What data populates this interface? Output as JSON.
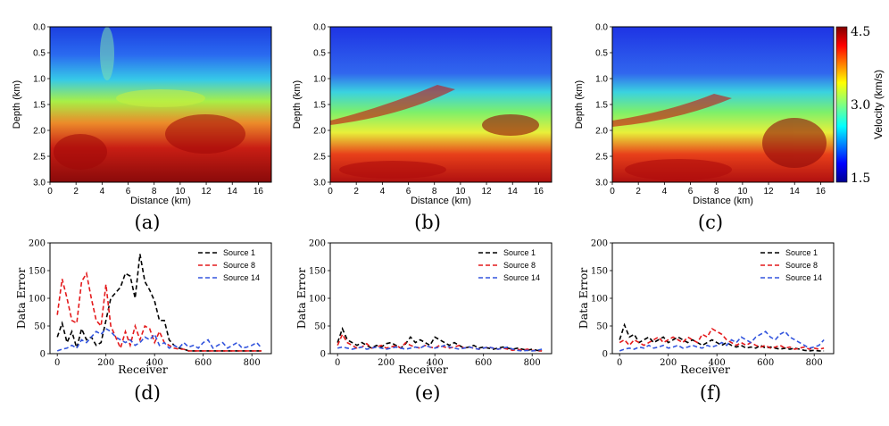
{
  "chart_data": [
    {
      "panel": "(a)",
      "type": "heatmap",
      "title": "",
      "xlabel": "Distance (km)",
      "ylabel": "Depth (km)",
      "xlim": [
        0,
        17
      ],
      "ylim": [
        3.0,
        0.0
      ],
      "x_ticks": [
        "0",
        "2",
        "4",
        "6",
        "8",
        "10",
        "12",
        "14",
        "16"
      ],
      "y_ticks": [
        "0.0",
        "0.5",
        "1.0",
        "1.5",
        "2.0",
        "2.5",
        "3.0"
      ],
      "description": "noisy velocity model"
    },
    {
      "panel": "(b)",
      "type": "heatmap",
      "title": "",
      "xlabel": "Distance (km)",
      "ylabel": "Depth (km)",
      "xlim": [
        0,
        17
      ],
      "ylim": [
        3.0,
        0.0
      ],
      "x_ticks": [
        "0",
        "2",
        "4",
        "6",
        "8",
        "10",
        "12",
        "14",
        "16"
      ],
      "y_ticks": [
        "0.0",
        "0.5",
        "1.0",
        "1.5",
        "2.0",
        "2.5",
        "3.0"
      ],
      "description": "layered velocity model"
    },
    {
      "panel": "(c)",
      "type": "heatmap",
      "title": "",
      "xlabel": "Distance (km)",
      "ylabel": "Depth (km)",
      "xlim": [
        0,
        17
      ],
      "ylim": [
        3.0,
        0.0
      ],
      "x_ticks": [
        "0",
        "2",
        "4",
        "6",
        "8",
        "10",
        "12",
        "14",
        "16"
      ],
      "y_ticks": [
        "0.0",
        "0.5",
        "1.0",
        "1.5",
        "2.0",
        "2.5",
        "3.0"
      ],
      "colorbar": {
        "label": "Velocity (km/s)",
        "ticks": [
          "4.5",
          "3.0",
          "1.5"
        ],
        "range": [
          1.5,
          4.5
        ]
      },
      "description": "layered velocity model"
    },
    {
      "panel": "(d)",
      "type": "line",
      "xlabel": "Receiver",
      "ylabel": "Data Error",
      "xlim": [
        -30,
        880
      ],
      "ylim": [
        0,
        200
      ],
      "x_ticks": [
        "0",
        "200",
        "400",
        "600",
        "800"
      ],
      "y_ticks": [
        "0",
        "50",
        "100",
        "150",
        "200"
      ],
      "legend_position": "top-right",
      "series": [
        {
          "name": "Source 1",
          "color": "#000000",
          "x": [
            0,
            20,
            40,
            60,
            80,
            100,
            120,
            140,
            160,
            180,
            200,
            220,
            240,
            260,
            280,
            300,
            320,
            340,
            360,
            380,
            400,
            420,
            440,
            460,
            480,
            500,
            520,
            540,
            560,
            580,
            600,
            620,
            640,
            660,
            680,
            700,
            720,
            740,
            760,
            780,
            800,
            820,
            840
          ],
          "values": [
            30,
            55,
            20,
            40,
            10,
            45,
            25,
            30,
            15,
            20,
            60,
            100,
            110,
            120,
            145,
            140,
            100,
            180,
            130,
            115,
            95,
            60,
            60,
            25,
            15,
            10,
            8,
            5,
            5,
            5,
            5,
            5,
            5,
            5,
            5,
            5,
            5,
            5,
            5,
            5,
            5,
            5,
            5
          ]
        },
        {
          "name": "Source 8",
          "color": "#e41a1c",
          "x": [
            0,
            20,
            40,
            60,
            80,
            100,
            120,
            140,
            160,
            180,
            200,
            220,
            240,
            260,
            280,
            300,
            320,
            340,
            360,
            380,
            400,
            420,
            440,
            460,
            480,
            500,
            520,
            540,
            560,
            580,
            600,
            620,
            640,
            660,
            680,
            700,
            720,
            740,
            760,
            780,
            800,
            820,
            840
          ],
          "values": [
            70,
            135,
            100,
            60,
            55,
            130,
            145,
            100,
            60,
            50,
            125,
            50,
            30,
            10,
            40,
            15,
            50,
            25,
            50,
            45,
            20,
            40,
            20,
            15,
            10,
            8,
            8,
            5,
            5,
            5,
            5,
            5,
            5,
            5,
            5,
            5,
            5,
            5,
            5,
            5,
            5,
            5,
            5
          ]
        },
        {
          "name": "Source 14",
          "color": "#3355dd",
          "x": [
            0,
            20,
            40,
            60,
            80,
            100,
            120,
            140,
            160,
            180,
            200,
            220,
            240,
            260,
            280,
            300,
            320,
            340,
            360,
            380,
            400,
            420,
            440,
            460,
            480,
            500,
            520,
            540,
            560,
            580,
            600,
            620,
            640,
            660,
            680,
            700,
            720,
            740,
            760,
            780,
            800,
            820,
            840
          ],
          "values": [
            5,
            8,
            10,
            15,
            10,
            25,
            20,
            30,
            40,
            35,
            45,
            40,
            30,
            25,
            20,
            25,
            15,
            20,
            30,
            25,
            35,
            15,
            20,
            10,
            15,
            10,
            20,
            12,
            15,
            10,
            20,
            25,
            10,
            15,
            20,
            10,
            15,
            20,
            10,
            12,
            15,
            20,
            10
          ]
        }
      ]
    },
    {
      "panel": "(e)",
      "type": "line",
      "xlabel": "Receiver",
      "ylabel": "Data Error",
      "xlim": [
        -30,
        880
      ],
      "ylim": [
        0,
        200
      ],
      "x_ticks": [
        "0",
        "200",
        "400",
        "600",
        "800"
      ],
      "y_ticks": [
        "0",
        "50",
        "100",
        "150",
        "200"
      ],
      "legend_position": "top-right",
      "series": [
        {
          "name": "Source 1",
          "color": "#000000",
          "x": [
            0,
            20,
            40,
            60,
            80,
            100,
            120,
            140,
            160,
            180,
            200,
            220,
            240,
            260,
            280,
            300,
            320,
            340,
            360,
            380,
            400,
            420,
            440,
            460,
            480,
            500,
            520,
            540,
            560,
            580,
            600,
            620,
            640,
            660,
            680,
            700,
            720,
            740,
            760,
            780,
            800,
            820,
            840
          ],
          "values": [
            20,
            45,
            25,
            20,
            15,
            20,
            15,
            10,
            15,
            12,
            18,
            20,
            15,
            10,
            18,
            30,
            20,
            25,
            20,
            15,
            30,
            25,
            20,
            15,
            20,
            15,
            10,
            12,
            15,
            10,
            12,
            10,
            8,
            10,
            12,
            10,
            8,
            10,
            8,
            6,
            8,
            6,
            5
          ]
        },
        {
          "name": "Source 8",
          "color": "#e41a1c",
          "x": [
            0,
            20,
            40,
            60,
            80,
            100,
            120,
            140,
            160,
            180,
            200,
            220,
            240,
            260,
            280,
            300,
            320,
            340,
            360,
            380,
            400,
            420,
            440,
            460,
            480,
            500,
            520,
            540,
            560,
            580,
            600,
            620,
            640,
            660,
            680,
            700,
            720,
            740,
            760,
            780,
            800,
            820,
            840
          ],
          "values": [
            15,
            35,
            20,
            15,
            10,
            12,
            18,
            10,
            12,
            15,
            10,
            12,
            15,
            10,
            20,
            15,
            12,
            10,
            15,
            12,
            10,
            15,
            12,
            10,
            12,
            15,
            10,
            12,
            10,
            8,
            10,
            12,
            10,
            8,
            10,
            8,
            6,
            8,
            6,
            8,
            6,
            5,
            5
          ]
        },
        {
          "name": "Source 14",
          "color": "#3355dd",
          "x": [
            0,
            20,
            40,
            60,
            80,
            100,
            120,
            140,
            160,
            180,
            200,
            220,
            240,
            260,
            280,
            300,
            320,
            340,
            360,
            380,
            400,
            420,
            440,
            460,
            480,
            500,
            520,
            540,
            560,
            580,
            600,
            620,
            640,
            660,
            680,
            700,
            720,
            740,
            760,
            780,
            800,
            820,
            840
          ],
          "values": [
            10,
            12,
            10,
            8,
            10,
            12,
            8,
            10,
            12,
            10,
            8,
            10,
            12,
            10,
            8,
            10,
            12,
            10,
            15,
            12,
            10,
            12,
            15,
            12,
            10,
            8,
            10,
            12,
            10,
            8,
            10,
            12,
            10,
            8,
            10,
            12,
            8,
            6,
            5,
            6,
            5,
            6,
            8
          ]
        }
      ]
    },
    {
      "panel": "(f)",
      "type": "line",
      "xlabel": "Receiver",
      "ylabel": "Data Error",
      "xlim": [
        -30,
        880
      ],
      "ylim": [
        0,
        200
      ],
      "x_ticks": [
        "0",
        "200",
        "400",
        "600",
        "800"
      ],
      "y_ticks": [
        "0",
        "50",
        "100",
        "150",
        "200"
      ],
      "legend_position": "top-right",
      "series": [
        {
          "name": "Source 1",
          "color": "#000000",
          "x": [
            0,
            20,
            40,
            60,
            80,
            100,
            120,
            140,
            160,
            180,
            200,
            220,
            240,
            260,
            280,
            300,
            320,
            340,
            360,
            380,
            400,
            420,
            440,
            460,
            480,
            500,
            520,
            540,
            560,
            580,
            600,
            620,
            640,
            660,
            680,
            700,
            720,
            740,
            760,
            780,
            800,
            820,
            840
          ],
          "values": [
            25,
            52,
            30,
            35,
            20,
            25,
            30,
            20,
            25,
            30,
            20,
            25,
            30,
            25,
            20,
            25,
            20,
            15,
            20,
            25,
            20,
            15,
            20,
            15,
            12,
            15,
            10,
            12,
            10,
            15,
            10,
            12,
            10,
            8,
            10,
            8,
            10,
            8,
            6,
            5,
            6,
            5,
            5
          ]
        },
        {
          "name": "Source 8",
          "color": "#e41a1c",
          "x": [
            0,
            20,
            40,
            60,
            80,
            100,
            120,
            140,
            160,
            180,
            200,
            220,
            240,
            260,
            280,
            300,
            320,
            340,
            360,
            380,
            400,
            420,
            440,
            460,
            480,
            500,
            520,
            540,
            560,
            580,
            600,
            620,
            640,
            660,
            680,
            700,
            720,
            740,
            760,
            780,
            800,
            820,
            840
          ],
          "values": [
            20,
            25,
            15,
            25,
            20,
            15,
            20,
            25,
            30,
            20,
            25,
            30,
            25,
            20,
            30,
            25,
            20,
            35,
            30,
            45,
            40,
            35,
            25,
            20,
            15,
            20,
            15,
            20,
            15,
            12,
            15,
            10,
            12,
            15,
            10,
            12,
            8,
            10,
            12,
            8,
            10,
            8,
            10
          ]
        },
        {
          "name": "Source 14",
          "color": "#3355dd",
          "x": [
            0,
            20,
            40,
            60,
            80,
            100,
            120,
            140,
            160,
            180,
            200,
            220,
            240,
            260,
            280,
            300,
            320,
            340,
            360,
            380,
            400,
            420,
            440,
            460,
            480,
            500,
            520,
            540,
            560,
            580,
            600,
            620,
            640,
            660,
            680,
            700,
            720,
            740,
            760,
            780,
            800,
            820,
            840
          ],
          "values": [
            5,
            8,
            10,
            8,
            12,
            10,
            15,
            10,
            12,
            15,
            10,
            12,
            15,
            10,
            12,
            15,
            12,
            10,
            15,
            12,
            15,
            20,
            15,
            25,
            20,
            30,
            25,
            20,
            30,
            35,
            40,
            30,
            25,
            35,
            40,
            30,
            25,
            20,
            15,
            10,
            12,
            15,
            25
          ]
        }
      ]
    }
  ]
}
